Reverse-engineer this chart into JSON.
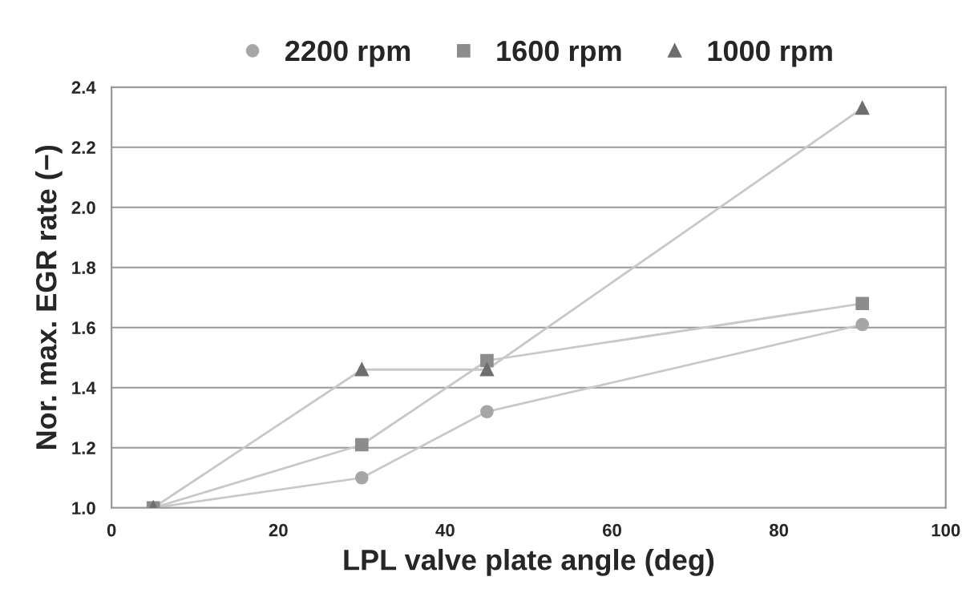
{
  "chart_data": {
    "type": "line",
    "xlabel": "LPL valve plate angle (deg)",
    "ylabel": "Nor. max. EGR rate (−)",
    "series": [
      {
        "name": "2200 rpm",
        "color": "#a6a6a6",
        "marker": "circle",
        "x": [
          5,
          30,
          45,
          90
        ],
        "values": [
          1.0,
          1.1,
          1.32,
          1.61
        ]
      },
      {
        "name": "1600 rpm",
        "color": "#8c8c8c",
        "marker": "square",
        "x": [
          5,
          30,
          45,
          90
        ],
        "values": [
          1.0,
          1.21,
          1.49,
          1.68
        ]
      },
      {
        "name": "1000 rpm",
        "color": "#6e6e6e",
        "marker": "triangle",
        "x": [
          5,
          30,
          45,
          90
        ],
        "values": [
          1.0,
          1.46,
          1.46,
          2.33
        ]
      }
    ],
    "xlim": [
      0,
      100
    ],
    "xticks": [
      0,
      20,
      40,
      60,
      80,
      100
    ],
    "ylim": [
      1.0,
      2.4
    ],
    "yticks": [
      {
        "value": 1.0,
        "label": "1.0"
      },
      {
        "value": 1.2,
        "label": "1.2"
      },
      {
        "value": 1.4,
        "label": "1.4"
      },
      {
        "value": 1.6,
        "label": "1.6"
      },
      {
        "value": 1.8,
        "label": "1.8"
      },
      {
        "value": 2.0,
        "label": "2.0"
      },
      {
        "value": 2.2,
        "label": "2.2"
      },
      {
        "value": 2.4,
        "label": "2.4"
      }
    ],
    "grid": "y",
    "legend": "top",
    "line_style": "solid"
  }
}
